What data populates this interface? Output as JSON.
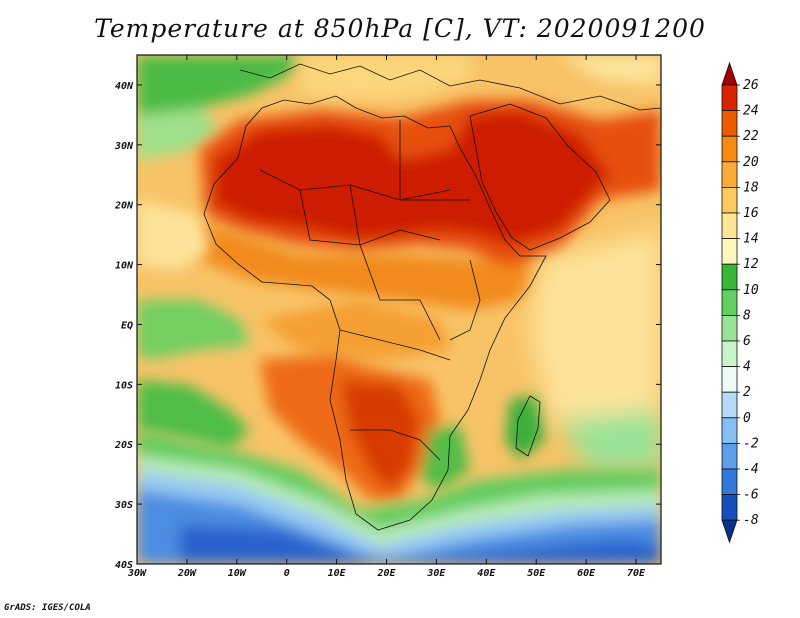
{
  "title": "Temperature at 850hPa [C], VT: 2020091200",
  "credit": "GrADS: IGES/COLA",
  "map": {
    "lat_labels": [
      "40N",
      "30N",
      "20N",
      "10N",
      "EQ",
      "10S",
      "20S",
      "30S",
      "40S"
    ],
    "lon_labels": [
      "30W",
      "20W",
      "10W",
      "0",
      "10E",
      "20E",
      "30E",
      "40E",
      "50E",
      "60E",
      "70E"
    ],
    "lon_range": [
      -30,
      75
    ],
    "lat_range": [
      -40,
      45
    ]
  },
  "colorbar": {
    "labels": [
      "26",
      "24",
      "22",
      "20",
      "18",
      "16",
      "14",
      "12",
      "10",
      "8",
      "6",
      "4",
      "2",
      "0",
      "-2",
      "-4",
      "-6",
      "-8"
    ],
    "colors": [
      "#a50000",
      "#d82200",
      "#ee5a00",
      "#f68a12",
      "#f9ab35",
      "#fbcc5c",
      "#fde595",
      "#fff7bd",
      "#36b536",
      "#63cf63",
      "#97e397",
      "#c9f3c9",
      "#ecfcf5",
      "#b3dbf7",
      "#86bff1",
      "#5b9fe8",
      "#3579d8",
      "#1550be",
      "#0b2f8d"
    ]
  },
  "legend_colors": {
    "ocean": "#f6bf5a",
    "hot_core": "#cc1a00",
    "hot": "#e44a0a",
    "warm": "#f38a1a",
    "cold_south": "#2f6ed2",
    "coastal_green": "#55c24a"
  }
}
